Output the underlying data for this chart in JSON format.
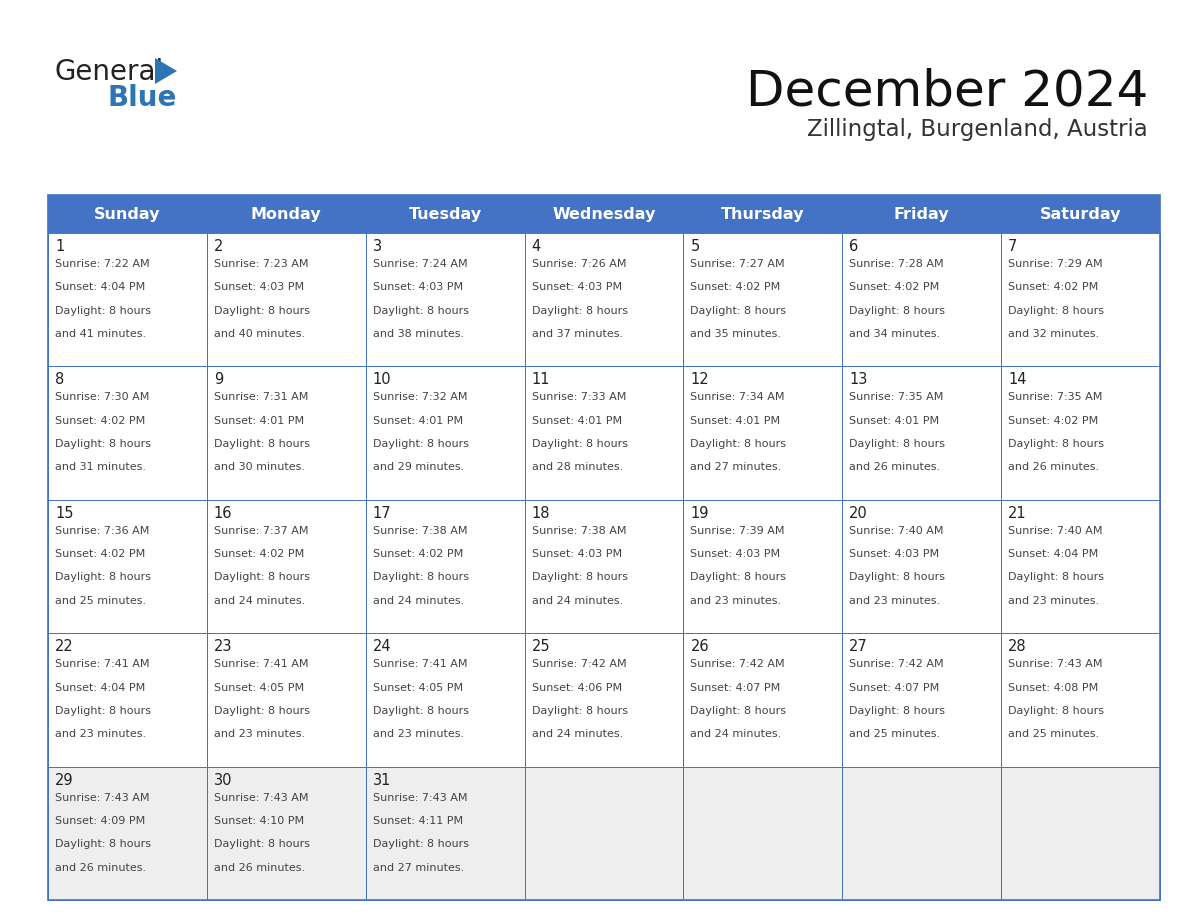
{
  "title": "December 2024",
  "subtitle": "Zillingtal, Burgenland, Austria",
  "header_bg": "#4472C4",
  "header_text": "#FFFFFF",
  "grid_color": "#4472C4",
  "last_row_bg": "#EEEEEE",
  "day_headers": [
    "Sunday",
    "Monday",
    "Tuesday",
    "Wednesday",
    "Thursday",
    "Friday",
    "Saturday"
  ],
  "days": [
    {
      "date": 1,
      "col": 0,
      "row": 0,
      "sunrise": "7:22 AM",
      "sunset": "4:04 PM",
      "dl_min": "41 minutes."
    },
    {
      "date": 2,
      "col": 1,
      "row": 0,
      "sunrise": "7:23 AM",
      "sunset": "4:03 PM",
      "dl_min": "40 minutes."
    },
    {
      "date": 3,
      "col": 2,
      "row": 0,
      "sunrise": "7:24 AM",
      "sunset": "4:03 PM",
      "dl_min": "38 minutes."
    },
    {
      "date": 4,
      "col": 3,
      "row": 0,
      "sunrise": "7:26 AM",
      "sunset": "4:03 PM",
      "dl_min": "37 minutes."
    },
    {
      "date": 5,
      "col": 4,
      "row": 0,
      "sunrise": "7:27 AM",
      "sunset": "4:02 PM",
      "dl_min": "35 minutes."
    },
    {
      "date": 6,
      "col": 5,
      "row": 0,
      "sunrise": "7:28 AM",
      "sunset": "4:02 PM",
      "dl_min": "34 minutes."
    },
    {
      "date": 7,
      "col": 6,
      "row": 0,
      "sunrise": "7:29 AM",
      "sunset": "4:02 PM",
      "dl_min": "32 minutes."
    },
    {
      "date": 8,
      "col": 0,
      "row": 1,
      "sunrise": "7:30 AM",
      "sunset": "4:02 PM",
      "dl_min": "31 minutes."
    },
    {
      "date": 9,
      "col": 1,
      "row": 1,
      "sunrise": "7:31 AM",
      "sunset": "4:01 PM",
      "dl_min": "30 minutes."
    },
    {
      "date": 10,
      "col": 2,
      "row": 1,
      "sunrise": "7:32 AM",
      "sunset": "4:01 PM",
      "dl_min": "29 minutes."
    },
    {
      "date": 11,
      "col": 3,
      "row": 1,
      "sunrise": "7:33 AM",
      "sunset": "4:01 PM",
      "dl_min": "28 minutes."
    },
    {
      "date": 12,
      "col": 4,
      "row": 1,
      "sunrise": "7:34 AM",
      "sunset": "4:01 PM",
      "dl_min": "27 minutes."
    },
    {
      "date": 13,
      "col": 5,
      "row": 1,
      "sunrise": "7:35 AM",
      "sunset": "4:01 PM",
      "dl_min": "26 minutes."
    },
    {
      "date": 14,
      "col": 6,
      "row": 1,
      "sunrise": "7:35 AM",
      "sunset": "4:02 PM",
      "dl_min": "26 minutes."
    },
    {
      "date": 15,
      "col": 0,
      "row": 2,
      "sunrise": "7:36 AM",
      "sunset": "4:02 PM",
      "dl_min": "25 minutes."
    },
    {
      "date": 16,
      "col": 1,
      "row": 2,
      "sunrise": "7:37 AM",
      "sunset": "4:02 PM",
      "dl_min": "24 minutes."
    },
    {
      "date": 17,
      "col": 2,
      "row": 2,
      "sunrise": "7:38 AM",
      "sunset": "4:02 PM",
      "dl_min": "24 minutes."
    },
    {
      "date": 18,
      "col": 3,
      "row": 2,
      "sunrise": "7:38 AM",
      "sunset": "4:03 PM",
      "dl_min": "24 minutes."
    },
    {
      "date": 19,
      "col": 4,
      "row": 2,
      "sunrise": "7:39 AM",
      "sunset": "4:03 PM",
      "dl_min": "23 minutes."
    },
    {
      "date": 20,
      "col": 5,
      "row": 2,
      "sunrise": "7:40 AM",
      "sunset": "4:03 PM",
      "dl_min": "23 minutes."
    },
    {
      "date": 21,
      "col": 6,
      "row": 2,
      "sunrise": "7:40 AM",
      "sunset": "4:04 PM",
      "dl_min": "23 minutes."
    },
    {
      "date": 22,
      "col": 0,
      "row": 3,
      "sunrise": "7:41 AM",
      "sunset": "4:04 PM",
      "dl_min": "23 minutes."
    },
    {
      "date": 23,
      "col": 1,
      "row": 3,
      "sunrise": "7:41 AM",
      "sunset": "4:05 PM",
      "dl_min": "23 minutes."
    },
    {
      "date": 24,
      "col": 2,
      "row": 3,
      "sunrise": "7:41 AM",
      "sunset": "4:05 PM",
      "dl_min": "23 minutes."
    },
    {
      "date": 25,
      "col": 3,
      "row": 3,
      "sunrise": "7:42 AM",
      "sunset": "4:06 PM",
      "dl_min": "24 minutes."
    },
    {
      "date": 26,
      "col": 4,
      "row": 3,
      "sunrise": "7:42 AM",
      "sunset": "4:07 PM",
      "dl_min": "24 minutes."
    },
    {
      "date": 27,
      "col": 5,
      "row": 3,
      "sunrise": "7:42 AM",
      "sunset": "4:07 PM",
      "dl_min": "25 minutes."
    },
    {
      "date": 28,
      "col": 6,
      "row": 3,
      "sunrise": "7:43 AM",
      "sunset": "4:08 PM",
      "dl_min": "25 minutes."
    },
    {
      "date": 29,
      "col": 0,
      "row": 4,
      "sunrise": "7:43 AM",
      "sunset": "4:09 PM",
      "dl_min": "26 minutes."
    },
    {
      "date": 30,
      "col": 1,
      "row": 4,
      "sunrise": "7:43 AM",
      "sunset": "4:10 PM",
      "dl_min": "26 minutes."
    },
    {
      "date": 31,
      "col": 2,
      "row": 4,
      "sunrise": "7:43 AM",
      "sunset": "4:11 PM",
      "dl_min": "27 minutes."
    }
  ],
  "num_rows": 5,
  "logo_general_color": "#222222",
  "logo_blue_color": "#2E75B6",
  "logo_triangle_color": "#2E75B6"
}
